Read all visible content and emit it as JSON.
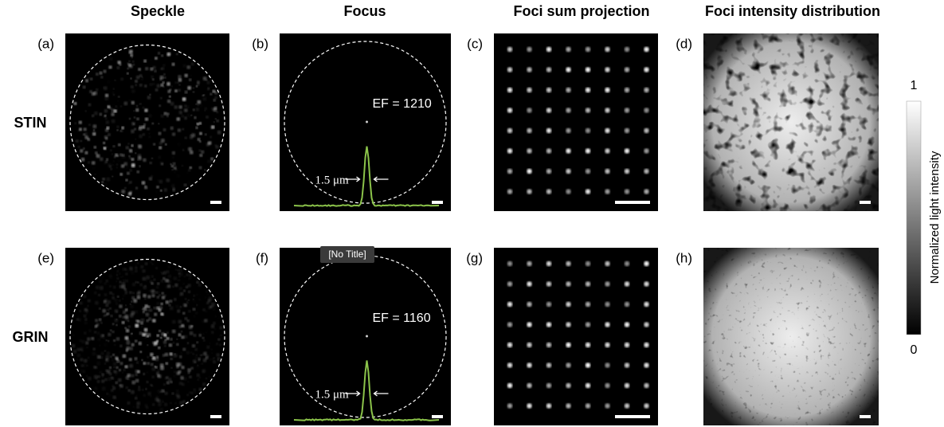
{
  "column_headers": [
    "Speckle",
    "Focus",
    "Foci sum projection",
    "Foci intensity distribution"
  ],
  "rows": [
    {
      "label": "STIN",
      "panels": [
        "(a)",
        "(b)",
        "(c)",
        "(d)"
      ],
      "ef": "EF = 1210",
      "fwhm": "1.5 μm"
    },
    {
      "label": "GRIN",
      "panels": [
        "(e)",
        "(f)",
        "(g)",
        "(h)"
      ],
      "ef": "EF = 1160",
      "fwhm": "1.5 μm"
    }
  ],
  "colorbar": {
    "max": "1",
    "min": "0",
    "label": "Normalized light intensity"
  },
  "tooltip": "[No Title]"
}
